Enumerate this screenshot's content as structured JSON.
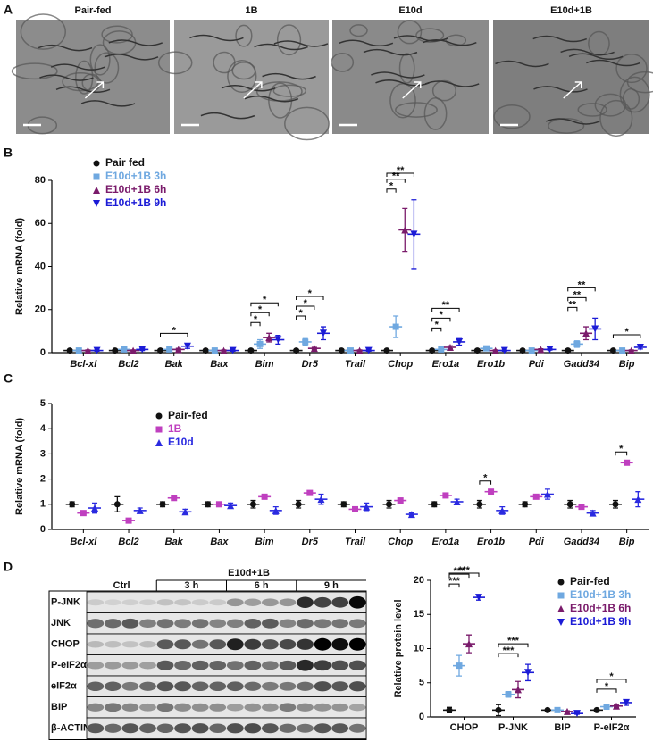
{
  "panel_labels": [
    "A",
    "B",
    "C",
    "D"
  ],
  "images": [
    "Pair-fed",
    "1B",
    "E10d",
    "E10d+1B"
  ],
  "blot": {
    "header": "E10d+1B",
    "groups": [
      "Ctrl",
      "3 h",
      "6 h",
      "9 h"
    ],
    "rows": [
      "P-JNK",
      "JNK",
      "CHOP",
      "P-eIF2α",
      "eIF2α",
      "BIP",
      "β-ACTIN"
    ]
  },
  "chart_data": [
    {
      "type": "strip",
      "ylabel": "Relative mRNA (fold)",
      "italic": true,
      "categories": [
        "Bcl-xl",
        "Bcl2",
        "Bak",
        "Bax",
        "Bim",
        "Dr5",
        "Trail",
        "Chop",
        "Ero1a",
        "Ero1b",
        "Pdi",
        "Gadd34",
        "Bip"
      ],
      "ylim": [
        0,
        80
      ],
      "yticks": [
        0,
        20,
        40,
        60,
        80
      ],
      "series": [
        {
          "name": "Pair fed",
          "color": "#111111",
          "marker": "circle",
          "values": [
            1,
            1,
            1,
            1,
            1,
            1,
            1,
            1,
            1,
            1,
            1,
            1,
            1
          ],
          "errors": [
            0.2,
            0.2,
            0.2,
            0.2,
            0.2,
            0.3,
            0.2,
            0.3,
            0.2,
            0.2,
            0.2,
            0.2,
            0.2
          ]
        },
        {
          "name": "E10d+1B 3h",
          "color": "#6fa8e0",
          "marker": "square",
          "values": [
            1,
            1.5,
            1.5,
            1,
            4,
            5,
            1,
            12,
            1.5,
            2,
            1,
            4,
            1
          ],
          "errors": [
            0.3,
            0.5,
            0.5,
            0.3,
            2,
            1.5,
            0.3,
            5,
            0.5,
            0.5,
            0.3,
            1.5,
            0.3
          ]
        },
        {
          "name": "E10d+1B 6h",
          "color": "#7a1b6b",
          "marker": "tri",
          "values": [
            1,
            1,
            1.5,
            1,
            7,
            2,
            1,
            57,
            2.5,
            1,
            1.5,
            9,
            1
          ],
          "errors": [
            0.3,
            0.3,
            0.5,
            0.3,
            2,
            0.5,
            0.3,
            10,
            0.7,
            0.3,
            0.3,
            3,
            0.3
          ]
        },
        {
          "name": "E10d+1B 9h",
          "color": "#1b1bd6",
          "marker": "tridown",
          "values": [
            1,
            1.5,
            3,
            1,
            6,
            9,
            1,
            55,
            5,
            1,
            1.5,
            11,
            2.5
          ],
          "errors": [
            0.3,
            0.5,
            1,
            0.3,
            2,
            3,
            0.3,
            16,
            1.5,
            0.3,
            0.3,
            5,
            0.8
          ]
        }
      ],
      "significance": [
        {
          "category": "Bak",
          "from": "Pair fed",
          "to": "E10d+1B 9h",
          "label": "*"
        },
        {
          "category": "Bim",
          "from": "Pair fed",
          "to": "E10d+1B 3h",
          "label": "*"
        },
        {
          "category": "Bim",
          "from": "Pair fed",
          "to": "E10d+1B 6h",
          "label": "*"
        },
        {
          "category": "Bim",
          "from": "Pair fed",
          "to": "E10d+1B 9h",
          "label": "*"
        },
        {
          "category": "Dr5",
          "from": "Pair fed",
          "to": "E10d+1B 3h",
          "label": "*"
        },
        {
          "category": "Dr5",
          "from": "Pair fed",
          "to": "E10d+1B 6h",
          "label": "*"
        },
        {
          "category": "Dr5",
          "from": "Pair fed",
          "to": "E10d+1B 9h",
          "label": "*"
        },
        {
          "category": "Chop",
          "from": "Pair fed",
          "to": "E10d+1B 3h",
          "label": "*"
        },
        {
          "category": "Chop",
          "from": "Pair fed",
          "to": "E10d+1B 6h",
          "label": "**"
        },
        {
          "category": "Chop",
          "from": "Pair fed",
          "to": "E10d+1B 9h",
          "label": "**"
        },
        {
          "category": "Ero1a",
          "from": "Pair fed",
          "to": "E10d+1B 3h",
          "label": "*"
        },
        {
          "category": "Ero1a",
          "from": "Pair fed",
          "to": "E10d+1B 6h",
          "label": "*"
        },
        {
          "category": "Ero1a",
          "from": "Pair fed",
          "to": "E10d+1B 9h",
          "label": "**"
        },
        {
          "category": "Gadd34",
          "from": "Pair fed",
          "to": "E10d+1B 3h",
          "label": "**"
        },
        {
          "category": "Gadd34",
          "from": "Pair fed",
          "to": "E10d+1B 6h",
          "label": "**"
        },
        {
          "category": "Gadd34",
          "from": "Pair fed",
          "to": "E10d+1B 9h",
          "label": "**"
        },
        {
          "category": "Bip",
          "from": "Pair fed",
          "to": "E10d+1B 9h",
          "label": "*"
        }
      ]
    },
    {
      "type": "strip",
      "ylabel": "Relative mRNA (fold)",
      "italic": true,
      "categories": [
        "Bcl-xl",
        "Bcl2",
        "Bak",
        "Bax",
        "Bim",
        "Dr5",
        "Trail",
        "Chop",
        "Ero1a",
        "Ero1b",
        "Pdi",
        "Gadd34",
        "Bip"
      ],
      "ylim": [
        0,
        5
      ],
      "yticks": [
        0,
        1,
        2,
        3,
        4,
        5
      ],
      "series": [
        {
          "name": "Pair-fed",
          "color": "#111111",
          "marker": "circle",
          "values": [
            1,
            1,
            1,
            1,
            1,
            1,
            1,
            1,
            1,
            1,
            1,
            1,
            1
          ],
          "errors": [
            0.1,
            0.3,
            0.1,
            0.1,
            0.15,
            0.15,
            0.1,
            0.15,
            0.1,
            0.15,
            0.1,
            0.15,
            0.15
          ]
        },
        {
          "name": "1B",
          "color": "#bf3fbf",
          "marker": "square",
          "values": [
            0.65,
            0.35,
            1.25,
            1,
            1.3,
            1.45,
            0.8,
            1.15,
            1.35,
            1.5,
            1.3,
            0.9,
            2.65
          ]
        },
        {
          "name": "E10d",
          "color": "#2a2ae0",
          "marker": "tri",
          "values": [
            0.85,
            0.75,
            0.7,
            0.95,
            0.75,
            1.2,
            0.9,
            0.6,
            1.1,
            0.75,
            1.4,
            0.65,
            1.2
          ],
          "errors": [
            0.2,
            0.1,
            0.1,
            0.1,
            0.15,
            0.2,
            0.15,
            0.05,
            0.1,
            0.15,
            0.2,
            0.1,
            0.3
          ]
        }
      ],
      "significance": [
        {
          "category": "Ero1b",
          "from": "Pair-fed",
          "to": "1B",
          "label": "*"
        },
        {
          "category": "Bip",
          "from": "Pair-fed",
          "to": "1B",
          "label": "*"
        }
      ]
    },
    {
      "type": "strip",
      "ylabel": "Relative protein level",
      "italic": false,
      "categories": [
        "CHOP",
        "P-JNK",
        "BIP",
        "P-eIF2α"
      ],
      "ylim": [
        0,
        20
      ],
      "yticks": [
        0,
        5,
        10,
        15,
        20
      ],
      "series": [
        {
          "name": "Pair-fed",
          "color": "#111111",
          "marker": "circle",
          "values": [
            1,
            1,
            1,
            1
          ],
          "errors": [
            0.4,
            0.8,
            0.1,
            0.1
          ]
        },
        {
          "name": "E10d+1B 3h",
          "color": "#6fa8e0",
          "marker": "square",
          "values": [
            7.5,
            3.3,
            1,
            1.5
          ],
          "errors": [
            1.5,
            0.4,
            0.1,
            0.3
          ]
        },
        {
          "name": "E10d+1B 6h",
          "color": "#7a1b6b",
          "marker": "tri",
          "values": [
            10.7,
            4,
            0.8,
            1.6
          ],
          "errors": [
            1.3,
            1.2,
            0.1,
            0.2
          ]
        },
        {
          "name": "E10d+1B 9h",
          "color": "#1b1bd6",
          "marker": "tridown",
          "values": [
            17.5,
            6.5,
            0.5,
            2.1
          ],
          "errors": [
            0.4,
            1.2,
            0.1,
            0.4
          ]
        }
      ],
      "significance": [
        {
          "category": "CHOP",
          "from": "Pair-fed",
          "to": "E10d+1B 3h",
          "label": "***"
        },
        {
          "category": "CHOP",
          "from": "Pair-fed",
          "to": "E10d+1B 6h",
          "label": "***"
        },
        {
          "category": "CHOP",
          "from": "Pair-fed",
          "to": "E10d+1B 9h",
          "label": "***"
        },
        {
          "category": "P-JNK",
          "from": "Pair-fed",
          "to": "E10d+1B 6h",
          "label": "***"
        },
        {
          "category": "P-JNK",
          "from": "Pair-fed",
          "to": "E10d+1B 9h",
          "label": "***"
        },
        {
          "category": "P-eIF2α",
          "from": "Pair-fed",
          "to": "E10d+1B 6h",
          "label": "*"
        },
        {
          "category": "P-eIF2α",
          "from": "Pair-fed",
          "to": "E10d+1B 9h",
          "label": "*"
        }
      ]
    }
  ]
}
